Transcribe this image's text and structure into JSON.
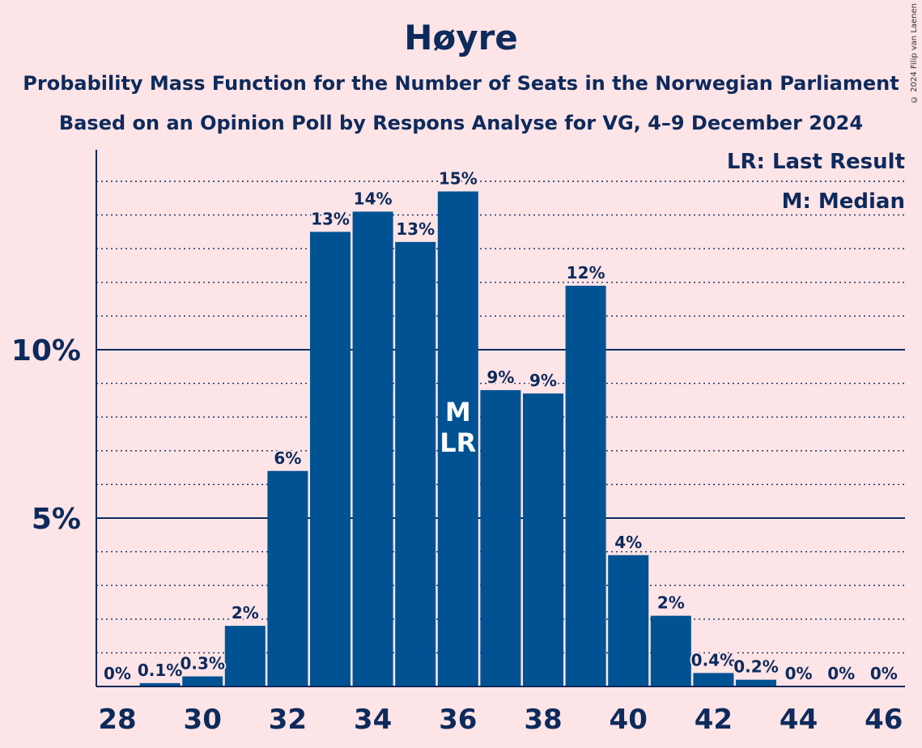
{
  "header": {
    "title": "Høyre",
    "subtitle_1": "Probability Mass Function for the Number of Seats in the Norwegian Parliament",
    "subtitle_2": "Based on an Opinion Poll by Respons Analyse for VG, 4–9 December 2024",
    "copyright": "© 2024 Filip van Laenen"
  },
  "legend": {
    "lr": "LR: Last Result",
    "m": "M: Median"
  },
  "chart_data": {
    "type": "bar",
    "categories": [
      28,
      29,
      30,
      31,
      32,
      33,
      34,
      35,
      36,
      37,
      38,
      39,
      40,
      41,
      42,
      43,
      44,
      45,
      46
    ],
    "values": [
      0,
      0.1,
      0.3,
      1.8,
      6.4,
      13.5,
      14.1,
      13.2,
      14.7,
      8.8,
      8.7,
      11.9,
      3.9,
      2.1,
      0.4,
      0.2,
      0,
      0,
      0
    ],
    "data_labels": [
      "0%",
      "0.1%",
      "0.3%",
      "2%",
      "6%",
      "13%",
      "14%",
      "13%",
      "15%",
      "9%",
      "9%",
      "12%",
      "4%",
      "2%",
      "0.4%",
      "0.2%",
      "0%",
      "0%",
      "0%"
    ],
    "x_tick_labels": [
      "28",
      "30",
      "32",
      "34",
      "36",
      "38",
      "40",
      "42",
      "44",
      "46"
    ],
    "x_tick_values": [
      28,
      30,
      32,
      34,
      36,
      38,
      40,
      42,
      44,
      46
    ],
    "y_tick_labels": [
      "5%",
      "10%"
    ],
    "y_tick_values": [
      5,
      10
    ],
    "ylim": [
      0,
      16
    ],
    "minor_grid_step": 1,
    "median": 36,
    "last_result": 36,
    "median_marker": "M",
    "last_result_marker": "LR",
    "bar_color": "#005293",
    "text_color": "#0d2a5c",
    "background": "#fde4e6"
  }
}
